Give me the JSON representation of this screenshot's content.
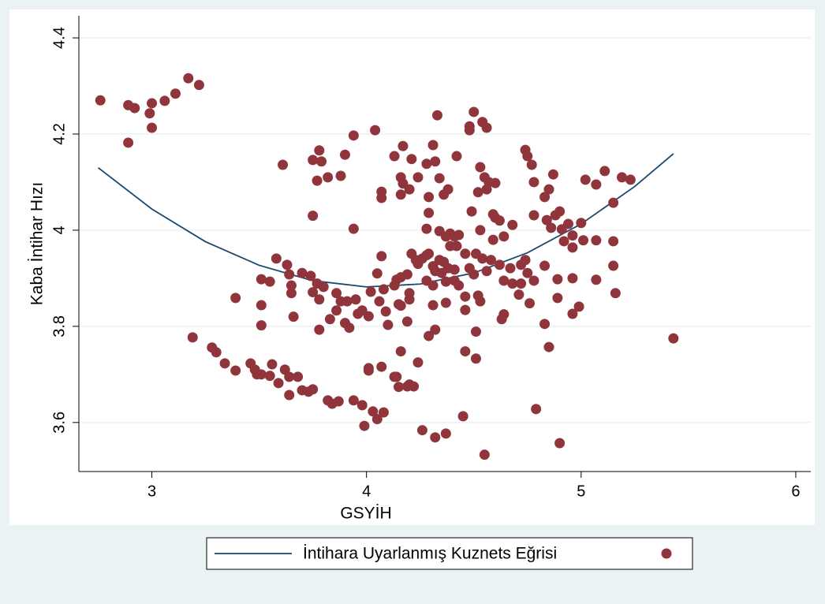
{
  "chart_data": {
    "type": "scatter",
    "x_label": "GSYİH",
    "y_label": "Kaba İntihar Hızı",
    "xlim": [
      2.66,
      6.07
    ],
    "ylim": [
      3.498,
      4.446
    ],
    "xticks": [
      3,
      4,
      5,
      6
    ],
    "yticks": [
      3.6,
      3.8,
      4,
      4.2,
      4.4
    ],
    "grid": true,
    "legend": "bottom",
    "series": [
      {
        "type": "line",
        "name": "İntihara Uyarlanmış Kuznets Eğrisi",
        "color": "#1a476f",
        "x": [
          2.75,
          3.0,
          3.25,
          3.5,
          3.75,
          4.0,
          4.25,
          4.5,
          4.75,
          5.0,
          5.25,
          5.43
        ],
        "values": [
          4.13,
          4.044,
          3.976,
          3.927,
          3.895,
          3.882,
          3.888,
          3.911,
          3.953,
          4.013,
          4.091,
          4.159
        ]
      },
      {
        "type": "scatter",
        "color": "#90353b",
        "x": [
          2.76,
          2.89,
          2.92,
          2.99,
          3.0,
          3.06,
          3.11,
          3.17,
          3.22,
          2.89,
          3.0,
          3.19,
          3.28,
          3.3,
          3.34,
          3.39,
          3.39,
          3.46,
          3.48,
          3.49,
          3.51,
          3.55,
          3.56,
          3.59,
          3.62,
          3.64,
          3.64,
          3.68,
          3.7,
          3.73,
          3.75,
          3.82,
          3.84,
          3.87,
          3.94,
          3.98,
          3.99,
          4.03,
          4.05,
          4.08,
          4.01,
          4.01,
          4.07,
          4.14,
          4.15,
          4.19,
          4.2,
          4.22,
          4.24,
          4.26,
          4.32,
          4.37,
          4.45,
          4.55,
          4.79,
          4.9,
          5.43,
          3.51,
          3.51,
          3.51,
          3.58,
          3.55,
          3.63,
          3.64,
          3.65,
          3.65,
          3.66,
          3.7,
          3.74,
          3.75,
          3.77,
          3.78,
          3.78,
          3.8,
          3.83,
          3.86,
          3.86,
          3.88,
          3.9,
          3.91,
          3.92,
          3.95,
          3.96,
          3.98,
          4.01,
          4.02,
          4.05,
          4.06,
          4.08,
          4.09,
          4.1,
          4.13,
          4.14,
          4.16,
          4.16,
          4.19,
          4.2,
          4.2,
          4.07,
          3.61,
          3.75,
          3.75,
          3.77,
          3.78,
          3.79,
          3.82,
          3.88,
          3.9,
          3.94,
          3.94,
          4.04,
          4.07,
          4.07,
          4.13,
          4.16,
          4.17,
          4.16,
          4.17,
          4.2,
          4.21,
          4.24,
          4.28,
          4.29,
          4.31,
          4.32,
          4.33,
          4.34,
          4.36,
          4.38,
          4.42,
          4.49,
          4.48,
          4.54,
          4.56,
          4.5,
          4.48,
          4.52,
          4.53,
          4.55,
          4.57,
          4.6,
          4.56,
          4.74,
          4.75,
          4.77,
          4.78,
          4.83,
          4.85,
          4.87,
          5.02,
          5.07,
          5.11,
          5.19,
          5.23,
          5.15,
          4.59,
          4.6,
          4.62,
          4.59,
          4.53,
          4.64,
          4.68,
          4.78,
          4.84,
          4.88,
          4.9,
          4.86,
          4.91,
          4.94,
          5.0,
          4.96,
          5.01,
          5.07,
          5.15,
          4.96,
          4.92,
          5.15,
          5.07,
          5.16,
          4.96,
          4.99,
          4.96,
          4.89,
          4.89,
          4.83,
          4.85,
          4.83,
          4.28,
          4.29,
          4.34,
          4.37,
          4.39,
          4.41,
          4.43,
          4.39,
          4.42,
          4.21,
          4.23,
          4.26,
          4.28,
          4.29,
          4.31,
          4.34,
          4.36,
          4.32,
          4.35,
          4.38,
          4.41,
          4.46,
          4.48,
          4.51,
          4.54,
          4.5,
          4.56,
          4.58,
          4.62,
          4.67,
          4.64,
          4.68,
          4.72,
          4.74,
          4.75,
          4.72,
          4.78,
          4.71,
          4.76,
          4.28,
          4.31,
          4.37,
          4.41,
          4.43,
          4.46,
          4.52,
          4.53,
          4.46,
          4.64,
          4.63,
          4.31,
          4.37,
          4.32,
          4.29,
          4.51,
          4.46,
          4.51,
          4.16,
          4.13,
          4.24,
          4.19,
          4.15
        ],
        "values": [
          4.27,
          4.26,
          4.254,
          4.243,
          4.264,
          4.269,
          4.284,
          4.316,
          4.302,
          4.182,
          4.213,
          3.777,
          3.756,
          3.746,
          3.723,
          3.708,
          3.859,
          3.723,
          3.71,
          3.7,
          3.7,
          3.697,
          3.721,
          3.682,
          3.71,
          3.695,
          3.657,
          3.695,
          3.667,
          3.664,
          3.669,
          3.646,
          3.639,
          3.644,
          3.646,
          3.636,
          3.593,
          3.623,
          3.607,
          3.621,
          3.708,
          3.713,
          3.716,
          3.695,
          3.674,
          3.675,
          3.679,
          3.675,
          3.725,
          3.584,
          3.569,
          3.577,
          3.613,
          3.533,
          3.628,
          3.557,
          3.775,
          3.898,
          3.844,
          3.802,
          3.941,
          3.893,
          3.928,
          3.908,
          3.885,
          3.869,
          3.82,
          3.911,
          3.905,
          3.871,
          3.889,
          3.856,
          3.793,
          3.882,
          3.815,
          3.869,
          3.833,
          3.852,
          3.807,
          3.852,
          3.797,
          3.856,
          3.826,
          3.833,
          3.821,
          3.872,
          3.91,
          3.852,
          3.877,
          3.831,
          3.803,
          3.885,
          3.897,
          3.902,
          3.843,
          3.81,
          3.856,
          3.869,
          3.946,
          4.136,
          4.03,
          4.146,
          4.103,
          4.166,
          4.143,
          4.11,
          4.113,
          4.157,
          4.197,
          4.003,
          4.208,
          4.08,
          4.067,
          4.154,
          4.11,
          4.175,
          4.074,
          4.097,
          4.085,
          4.148,
          4.11,
          4.138,
          4.069,
          4.177,
          4.143,
          4.239,
          4.108,
          4.074,
          4.085,
          4.154,
          4.039,
          4.216,
          4.225,
          4.213,
          4.246,
          4.208,
          4.079,
          4.131,
          4.11,
          4.1,
          4.098,
          4.085,
          4.167,
          4.154,
          4.136,
          4.1,
          4.069,
          4.085,
          4.116,
          4.105,
          4.095,
          4.123,
          4.11,
          4.105,
          4.057,
          4.033,
          4.026,
          4.02,
          3.98,
          4.0,
          3.987,
          4.011,
          4.031,
          4.021,
          4.031,
          4.039,
          4.005,
          4.002,
          4.013,
          4.015,
          3.989,
          3.979,
          3.979,
          3.977,
          3.964,
          3.977,
          3.926,
          3.897,
          3.869,
          3.9,
          3.841,
          3.826,
          3.898,
          3.859,
          3.926,
          3.757,
          3.805,
          4.003,
          4.036,
          3.998,
          3.987,
          3.993,
          3.987,
          3.99,
          3.967,
          3.967,
          3.951,
          3.938,
          3.941,
          3.948,
          3.951,
          3.925,
          3.938,
          3.934,
          3.915,
          3.911,
          3.921,
          3.918,
          3.951,
          3.921,
          3.951,
          3.941,
          3.908,
          3.915,
          3.938,
          3.928,
          3.921,
          3.895,
          3.889,
          3.928,
          3.938,
          3.911,
          3.889,
          3.895,
          3.866,
          3.848,
          3.895,
          3.885,
          3.893,
          3.895,
          3.885,
          3.862,
          3.864,
          3.852,
          3.834,
          3.825,
          3.815,
          3.844,
          3.849,
          3.793,
          3.78,
          3.789,
          3.748,
          3.733,
          3.748,
          3.695,
          3.93,
          3.908,
          3.846
        ]
      }
    ]
  }
}
